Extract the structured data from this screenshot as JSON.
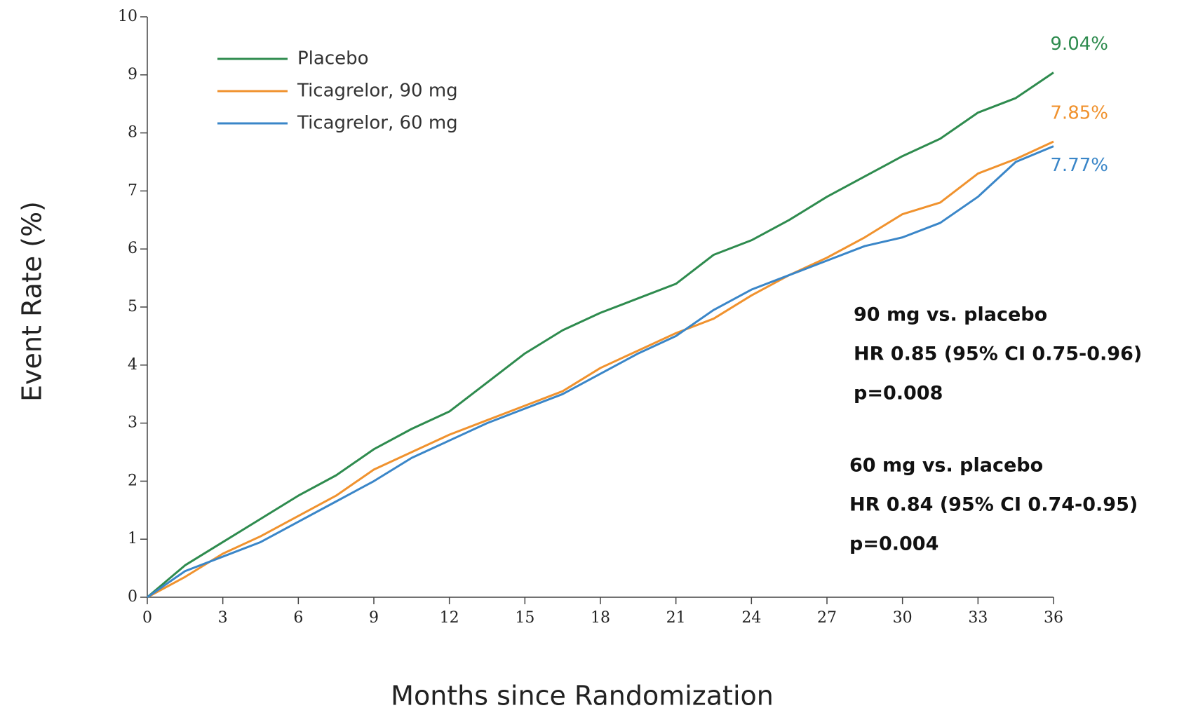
{
  "chart_data": {
    "type": "line",
    "xlabel": "Months since Randomization",
    "ylabel": "Event Rate (%)",
    "x": [
      0,
      1.5,
      3,
      4.5,
      6,
      7.5,
      9,
      10.5,
      12,
      13.5,
      15,
      16.5,
      18,
      19.5,
      21,
      22.5,
      24,
      25.5,
      27,
      28.5,
      30,
      31.5,
      33,
      34.5,
      36
    ],
    "series": [
      {
        "name": "Placebo",
        "color": "#2e8b4e",
        "values": [
          0,
          0.55,
          0.95,
          1.35,
          1.75,
          2.1,
          2.55,
          2.9,
          3.2,
          3.7,
          4.2,
          4.6,
          4.9,
          5.15,
          5.4,
          5.9,
          6.15,
          6.5,
          6.9,
          7.25,
          7.6,
          7.9,
          8.35,
          8.6,
          9.04
        ],
        "value_labels": [
          null,
          null,
          null,
          null,
          null,
          null,
          null,
          null,
          null,
          null,
          null,
          null,
          null,
          null,
          null,
          null,
          null,
          null,
          null,
          null,
          null,
          null,
          null,
          null,
          "9.04%"
        ]
      },
      {
        "name": "Ticagrelor, 90 mg",
        "color": "#f0922e",
        "values": [
          0,
          0.35,
          0.75,
          1.05,
          1.4,
          1.75,
          2.2,
          2.5,
          2.8,
          3.05,
          3.3,
          3.55,
          3.95,
          4.25,
          4.55,
          4.8,
          5.2,
          5.55,
          5.85,
          6.2,
          6.6,
          6.8,
          7.3,
          7.55,
          7.85
        ],
        "value_labels": [
          null,
          null,
          null,
          null,
          null,
          null,
          null,
          null,
          null,
          null,
          null,
          null,
          null,
          null,
          null,
          null,
          null,
          null,
          null,
          null,
          null,
          null,
          null,
          null,
          "7.85%"
        ]
      },
      {
        "name": "Ticagrelor, 60 mg",
        "color": "#3a86c8",
        "values": [
          0,
          0.45,
          0.7,
          0.95,
          1.3,
          1.65,
          2.0,
          2.4,
          2.7,
          3.0,
          3.25,
          3.5,
          3.85,
          4.2,
          4.5,
          4.95,
          5.3,
          5.55,
          5.8,
          6.05,
          6.2,
          6.45,
          6.9,
          7.5,
          7.77
        ],
        "value_labels": [
          null,
          null,
          null,
          null,
          null,
          null,
          null,
          null,
          null,
          null,
          null,
          null,
          null,
          null,
          null,
          null,
          null,
          null,
          null,
          null,
          null,
          null,
          null,
          null,
          "7.77%"
        ]
      }
    ],
    "xlim": [
      0,
      36
    ],
    "xticks": [
      0,
      3,
      6,
      9,
      12,
      15,
      18,
      21,
      24,
      27,
      30,
      33,
      36
    ],
    "ylim": [
      0,
      10
    ],
    "yticks": [
      0,
      1,
      2,
      3,
      4,
      5,
      6,
      7,
      8,
      9,
      10
    ],
    "grid": false,
    "legend": "upper left",
    "annotations": [
      [
        "90 mg vs. placebo",
        "HR 0.85 (95% CI 0.75-0.96)",
        "p=0.008"
      ],
      [
        "60 mg vs. placebo",
        "HR 0.84 (95% CI 0.74-0.95)",
        "p=0.004"
      ]
    ]
  }
}
